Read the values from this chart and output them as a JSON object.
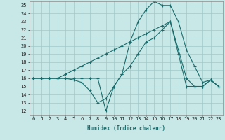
{
  "xlabel": "Humidex (Indice chaleur)",
  "bg_color": "#c8e8e8",
  "grid_color": "#a0c8c8",
  "line_color": "#1a6b6b",
  "xlim": [
    -0.5,
    23.5
  ],
  "ylim": [
    11.5,
    25.5
  ],
  "xticks": [
    0,
    1,
    2,
    3,
    4,
    5,
    6,
    7,
    8,
    9,
    10,
    11,
    12,
    13,
    14,
    15,
    16,
    17,
    18,
    19,
    20,
    21,
    22,
    23
  ],
  "yticks": [
    12,
    13,
    14,
    15,
    16,
    17,
    18,
    19,
    20,
    21,
    22,
    23,
    24,
    25
  ],
  "lines": [
    {
      "x": [
        0,
        1,
        2,
        3,
        4,
        5,
        6,
        7,
        8,
        9,
        10,
        11,
        12,
        13,
        14,
        15,
        16,
        17,
        18,
        19,
        20,
        21,
        22,
        23
      ],
      "y": [
        16,
        16,
        16,
        16,
        16,
        15.8,
        15.5,
        14.5,
        13,
        13.5,
        15,
        16.5,
        20.5,
        23,
        24.5,
        25.5,
        25,
        25,
        23,
        19.5,
        17.5,
        15.5,
        15.8,
        15
      ]
    },
    {
      "x": [
        0,
        1,
        2,
        3,
        4,
        5,
        6,
        7,
        8,
        9,
        10,
        11,
        12,
        13,
        14,
        15,
        16,
        17,
        18,
        19,
        20,
        21,
        22,
        23
      ],
      "y": [
        16,
        16,
        16,
        16,
        16,
        16,
        16,
        16,
        16,
        12,
        15,
        16.5,
        17.5,
        19,
        20.5,
        21,
        22,
        23,
        19,
        15,
        15,
        15,
        15.8,
        15
      ]
    },
    {
      "x": [
        0,
        1,
        2,
        3,
        4,
        5,
        6,
        7,
        8,
        9,
        10,
        11,
        12,
        13,
        14,
        15,
        16,
        17,
        18,
        19,
        20,
        21,
        22,
        23
      ],
      "y": [
        16,
        16,
        16,
        16,
        16.5,
        17,
        17.5,
        18,
        18.5,
        19,
        19.5,
        20,
        20.5,
        21,
        21.5,
        22,
        22.5,
        23,
        19.5,
        16,
        15,
        15,
        15.8,
        15
      ]
    }
  ]
}
